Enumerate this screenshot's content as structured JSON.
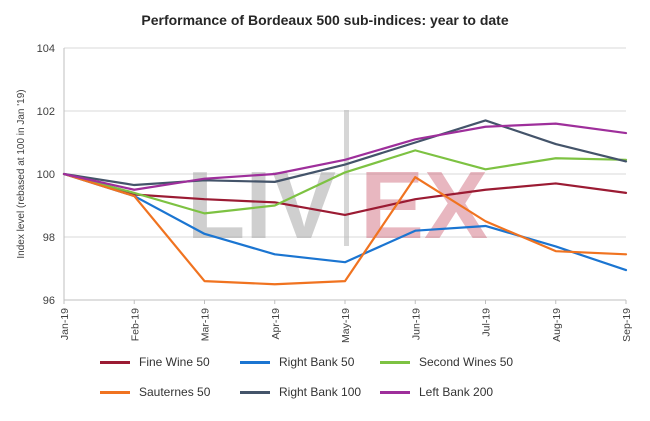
{
  "watermark": {
    "left": "LIV",
    "divider": "|",
    "right": "EX"
  },
  "chart_data": {
    "type": "line",
    "title": "Performance of Bordeaux 500 sub-indices: year to date",
    "xlabel": "",
    "ylabel": "Index level (rebased at 100 in Jan '19)",
    "x": [
      "Jan-19",
      "Feb-19",
      "Mar-19",
      "Apr-19",
      "May-19",
      "Jun-19",
      "Jul-19",
      "Aug-19",
      "Sep-19"
    ],
    "ylim": [
      96,
      104
    ],
    "yticks": [
      96,
      98,
      100,
      102,
      104
    ],
    "grid": "horizontal",
    "legend_position": "bottom",
    "series": [
      {
        "name": "Fine Wine 50",
        "color": "#9b1b33",
        "values": [
          100,
          99.35,
          99.2,
          99.1,
          98.7,
          99.2,
          99.5,
          99.7,
          99.4
        ]
      },
      {
        "name": "Right Bank 50",
        "color": "#1b75d1",
        "values": [
          100,
          99.3,
          98.1,
          97.45,
          97.2,
          98.2,
          98.35,
          97.7,
          96.95
        ]
      },
      {
        "name": "Second Wines 50",
        "color": "#7dc242",
        "values": [
          100,
          99.4,
          98.75,
          99.0,
          100.05,
          100.75,
          100.15,
          100.5,
          100.45
        ]
      },
      {
        "name": "Sauternes 50",
        "color": "#f07320",
        "values": [
          100,
          99.3,
          96.6,
          96.5,
          96.6,
          99.9,
          98.5,
          97.55,
          97.45
        ]
      },
      {
        "name": "Right Bank 100",
        "color": "#44546a",
        "values": [
          100,
          99.65,
          99.8,
          99.75,
          100.3,
          101.0,
          101.7,
          100.95,
          100.4
        ]
      },
      {
        "name": "Left Bank 200",
        "color": "#9e2f9b",
        "values": [
          100,
          99.5,
          99.85,
          100.0,
          100.45,
          101.1,
          101.5,
          101.6,
          101.3
        ]
      }
    ]
  }
}
